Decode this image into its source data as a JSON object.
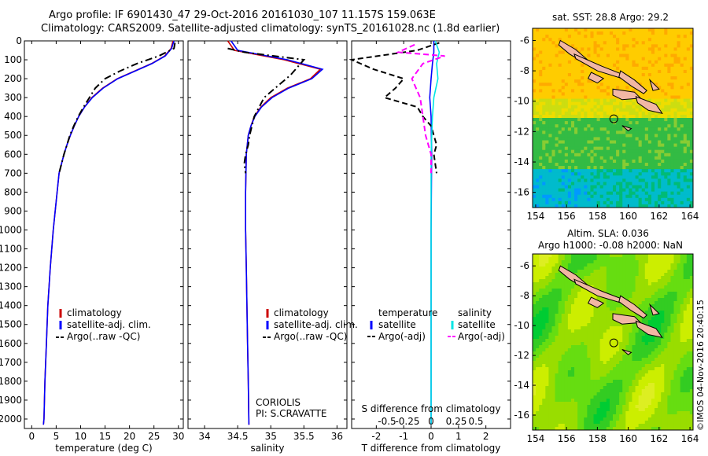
{
  "title": {
    "line1": "Argo profile: IF 6901430_47 29-Oct-2016 20161030_107 11.157S 159.063E",
    "line2": "Climatology: CARS2009. Satellite-adjusted climatology: synTS_20161028.nc (1.8d earlier)"
  },
  "credit": "©IMOS 04-Nov-2016 20:40:15",
  "colors": {
    "climatology": "#cc0000",
    "satellite": "#0000ff",
    "argo": "#000000",
    "sal_satellite": "#00e5e5",
    "sal_argo": "#ff00ff",
    "land": "#f2b7a4"
  },
  "depth_axis": {
    "ylim": [
      0,
      2050
    ],
    "ticks": [
      0,
      100,
      200,
      300,
      400,
      500,
      600,
      700,
      800,
      900,
      1000,
      1100,
      1200,
      1300,
      1400,
      1500,
      1600,
      1700,
      1800,
      1900,
      2000
    ],
    "reversed": true
  },
  "chart_data": [
    {
      "type": "line",
      "name": "temperature",
      "xlabel": "temperature (deg C)",
      "xlim": [
        -1.5,
        31
      ],
      "xticks": [
        0,
        5,
        10,
        15,
        20,
        25,
        30
      ],
      "legend": [
        "climatology",
        "satellite-adj. clim.",
        "Argo(..raw -QC)"
      ],
      "series": [
        {
          "name": "climatology",
          "style": "solid",
          "color": "#cc0000",
          "x": [
            28.9,
            28.5,
            27.2,
            24.5,
            21.0,
            17.5,
            14.5,
            12.3,
            10.8,
            9.6,
            8.7,
            7.9,
            7.2,
            6.6,
            6.1,
            5.6,
            5.2,
            4.4,
            3.8,
            3.3,
            3.0,
            2.7,
            2.5,
            2.4
          ],
          "y": [
            0,
            40,
            80,
            120,
            160,
            200,
            250,
            300,
            350,
            400,
            450,
            500,
            550,
            600,
            650,
            700,
            800,
            1000,
            1200,
            1400,
            1600,
            1800,
            2000,
            2030
          ]
        },
        {
          "name": "satellite-adj. clim.",
          "style": "solid",
          "color": "#0000ff",
          "x": [
            29.1,
            28.6,
            27.3,
            24.6,
            21.1,
            17.6,
            14.6,
            12.4,
            10.8,
            9.6,
            8.7,
            7.9,
            7.2,
            6.6,
            6.1,
            5.6,
            5.2,
            4.4,
            3.8,
            3.3,
            3.0,
            2.7,
            2.5,
            2.4
          ],
          "y": [
            0,
            40,
            80,
            120,
            160,
            200,
            250,
            300,
            350,
            400,
            450,
            500,
            550,
            600,
            650,
            700,
            800,
            1000,
            1200,
            1400,
            1600,
            1800,
            2000,
            2030
          ]
        },
        {
          "name": "Argo(..raw -QC)",
          "style": "dashdot",
          "color": "#000000",
          "x": [
            29.3,
            29.1,
            26.0,
            21.5,
            18.0,
            15.0,
            13.0,
            11.8,
            10.6,
            9.5,
            8.6,
            7.8,
            7.2,
            6.6,
            6.1,
            5.6
          ],
          "y": [
            10,
            40,
            80,
            120,
            160,
            200,
            250,
            300,
            350,
            400,
            450,
            500,
            550,
            600,
            650,
            700
          ]
        }
      ]
    },
    {
      "type": "line",
      "name": "salinity",
      "xlabel": "salinity",
      "xlim": [
        33.75,
        36.15
      ],
      "xticks": [
        34,
        34.5,
        35,
        35.5,
        36
      ],
      "legend": [
        "climatology",
        "satellite-adj. clim.",
        "Argo(..raw -QC)"
      ],
      "annotation": [
        "CORIOLIS",
        "PI: S.CRAVATTE"
      ],
      "series": [
        {
          "name": "climatology",
          "style": "solid",
          "color": "#cc0000",
          "x": [
            34.35,
            34.45,
            35.2,
            35.75,
            35.6,
            35.25,
            35.0,
            34.85,
            34.75,
            34.7,
            34.66,
            34.63,
            34.62,
            34.62,
            34.63,
            34.64,
            34.65,
            34.66,
            34.67
          ],
          "y": [
            0,
            50,
            100,
            150,
            200,
            250,
            300,
            350,
            400,
            450,
            500,
            600,
            800,
            1000,
            1200,
            1400,
            1600,
            1800,
            2030
          ]
        },
        {
          "name": "satellite-adj. clim.",
          "style": "solid",
          "color": "#0000ff",
          "x": [
            34.4,
            34.5,
            35.25,
            35.78,
            35.62,
            35.27,
            35.02,
            34.86,
            34.76,
            34.7,
            34.66,
            34.63,
            34.62,
            34.62,
            34.63,
            34.64,
            34.65,
            34.66,
            34.67
          ],
          "y": [
            0,
            50,
            100,
            150,
            200,
            250,
            300,
            350,
            400,
            450,
            500,
            600,
            800,
            1000,
            1200,
            1400,
            1600,
            1800,
            2030
          ]
        },
        {
          "name": "Argo(..raw -QC)",
          "style": "dashdot",
          "color": "#000000",
          "x": [
            34.35,
            34.6,
            35.5,
            35.3,
            34.9,
            34.75,
            34.68,
            34.66,
            34.62,
            34.6,
            34.62
          ],
          "y": [
            40,
            60,
            100,
            180,
            300,
            400,
            500,
            550,
            600,
            650,
            700
          ]
        }
      ]
    },
    {
      "type": "line",
      "name": "difference",
      "xlabel": "T difference from climatology",
      "xlim": [
        -2.9,
        2.9
      ],
      "xticks": [
        -2,
        -1,
        0,
        1,
        2
      ],
      "xlabel_top": "S difference from climatology",
      "xticks_top": [
        "-0.5",
        "-0.25",
        "0",
        "0.25",
        "0.5"
      ],
      "legend": [
        {
          "group": "temperature",
          "items": [
            "satellite",
            "Argo(-adj)"
          ]
        },
        {
          "group": "salinity",
          "items": [
            "satellite",
            "Argo(-adj)"
          ]
        }
      ],
      "series": [
        {
          "name": "temperature satellite",
          "style": "solid",
          "color": "#0000ff",
          "x": [
            0.1,
            0.1,
            0.05,
            0,
            -0.05,
            0,
            0.02,
            0,
            0
          ],
          "y": [
            0,
            60,
            120,
            200,
            300,
            400,
            600,
            1000,
            2030
          ]
        },
        {
          "name": "temperature Argo(-adj)",
          "style": "dashed",
          "color": "#000000",
          "x": [
            0.3,
            -0.5,
            -2.9,
            -2.1,
            -1.0,
            -1.3,
            -1.7,
            -0.5,
            -0.3,
            0,
            0.1,
            0.2,
            0.1,
            0.2
          ],
          "y": [
            10,
            50,
            100,
            150,
            200,
            250,
            300,
            350,
            400,
            450,
            500,
            550,
            600,
            700
          ]
        },
        {
          "name": "salinity satellite",
          "style": "solid",
          "color": "#00e5e5",
          "x": [
            0.15,
            0.3,
            0.2,
            0.25,
            0.1,
            0.05,
            0,
            0,
            0
          ],
          "y": [
            0,
            60,
            120,
            200,
            300,
            400,
            600,
            1000,
            2030
          ]
        },
        {
          "name": "salinity Argo(-adj)",
          "style": "dashed",
          "color": "#ff00ff",
          "x": [
            -0.6,
            -1.2,
            0.5,
            -0.3,
            -0.7,
            -0.4,
            -0.3,
            -0.2,
            -0.1,
            0,
            0
          ],
          "y": [
            20,
            60,
            80,
            120,
            200,
            300,
            400,
            500,
            550,
            600,
            700
          ]
        }
      ]
    },
    {
      "type": "heatmap",
      "name": "sst_map",
      "title": "sat. SST: 28.8 Argo: 29.2",
      "xlim": [
        153.8,
        164.2
      ],
      "ylim": [
        -17,
        -5.2
      ],
      "xticks": [
        154,
        156,
        158,
        160,
        162,
        164
      ],
      "yticks": [
        -6,
        -8,
        -10,
        -12,
        -14,
        -16
      ],
      "argo_position": {
        "lon": 159.063,
        "lat": -11.157
      },
      "palette": [
        "#0099ff",
        "#00bbcc",
        "#00bb77",
        "#33bb44",
        "#88cc33",
        "#ccdd11",
        "#eedd00",
        "#ffcc00",
        "#ffaa00"
      ]
    },
    {
      "type": "heatmap",
      "name": "sla_map",
      "title_line1": "Altim. SLA: 0.036",
      "title_line2": "Argo h1000: -0.08 h2000: NaN",
      "xlim": [
        153.8,
        164.2
      ],
      "ylim": [
        -17,
        -5.2
      ],
      "xticks": [
        154,
        156,
        158,
        160,
        162,
        164
      ],
      "yticks": [
        -6,
        -8,
        -10,
        -12,
        -14,
        -16
      ],
      "argo_position": {
        "lon": 159.063,
        "lat": -11.157
      },
      "palette": [
        "#00cc33",
        "#33cc22",
        "#66dd11",
        "#99dd00",
        "#ccee00",
        "#ddee22"
      ]
    }
  ]
}
